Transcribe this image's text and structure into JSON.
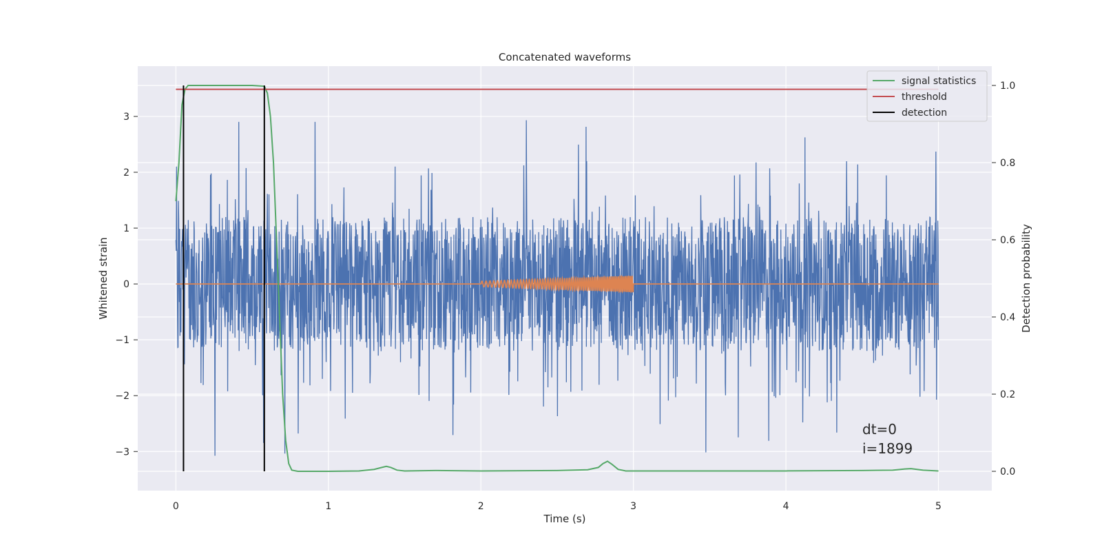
{
  "chart_data": {
    "type": "line",
    "title": "Concatenated waveforms",
    "xlabel": "Time (s)",
    "ylabel": "Whitened strain",
    "y2label": "Detection probability",
    "xlim": [
      -0.25,
      5.35
    ],
    "ylim": [
      -3.7,
      3.9
    ],
    "y2lim": [
      -0.05,
      1.05
    ],
    "xticks": [
      0,
      1,
      2,
      3,
      4,
      5
    ],
    "yticks": [
      -3,
      -2,
      -1,
      0,
      1,
      2,
      3
    ],
    "y2ticks": [
      0.0,
      0.2,
      0.4,
      0.6,
      0.8,
      1.0
    ],
    "xtick_labels": [
      "0",
      "1",
      "2",
      "3",
      "4",
      "5"
    ],
    "ytick_labels": [
      "−3",
      "−2",
      "−1",
      "0",
      "1",
      "2",
      "3"
    ],
    "y2tick_labels": [
      "0.0",
      "0.2",
      "0.4",
      "0.6",
      "0.8",
      "1.0"
    ],
    "grid": true,
    "legend_position": "top-right",
    "colors": {
      "background": "#eaeaf2",
      "grid": "#ffffff",
      "strain": "#4c72b0",
      "injected": "#dd8452",
      "signal": "#55a868",
      "threshold": "#c44e52",
      "detection": "#000000"
    },
    "series": [
      {
        "name": "signal statistics",
        "axis": "right",
        "x": [
          0.0,
          0.02,
          0.04,
          0.06,
          0.08,
          0.1,
          0.2,
          0.3,
          0.4,
          0.5,
          0.58,
          0.6,
          0.62,
          0.64,
          0.66,
          0.68,
          0.7,
          0.72,
          0.74,
          0.76,
          0.8,
          1.0,
          1.2,
          1.3,
          1.35,
          1.38,
          1.41,
          1.45,
          1.5,
          1.7,
          2.0,
          2.5,
          2.7,
          2.77,
          2.8,
          2.83,
          2.86,
          2.9,
          2.95,
          3.2,
          4.0,
          4.5,
          4.7,
          4.78,
          4.82,
          4.86,
          4.9,
          5.0
        ],
        "values": [
          0.7,
          0.8,
          0.95,
          0.99,
          1.0,
          1.0,
          1.0,
          1.0,
          1.0,
          1.0,
          0.998,
          0.98,
          0.92,
          0.8,
          0.6,
          0.4,
          0.2,
          0.08,
          0.02,
          0.003,
          0.0,
          0.0,
          0.001,
          0.005,
          0.01,
          0.013,
          0.01,
          0.003,
          0.001,
          0.002,
          0.001,
          0.002,
          0.004,
          0.01,
          0.02,
          0.026,
          0.018,
          0.005,
          0.001,
          0.001,
          0.001,
          0.002,
          0.003,
          0.006,
          0.007,
          0.005,
          0.003,
          0.001
        ]
      },
      {
        "name": "threshold",
        "axis": "right",
        "x": [
          0.0,
          5.0
        ],
        "values": [
          0.99,
          0.99
        ]
      },
      {
        "name": "detection",
        "axis": "right",
        "x": [
          0.05,
          0.58
        ],
        "values": [
          1.0,
          1.0
        ]
      }
    ],
    "strain_range": [
      -3.3,
      3.55
    ],
    "injected_signal": {
      "x_start": 2.0,
      "x_end": 3.0,
      "amplitude_start": 0.05,
      "amplitude_end": 0.15
    },
    "annotations": [
      "dt=0",
      "i=1899"
    ]
  }
}
